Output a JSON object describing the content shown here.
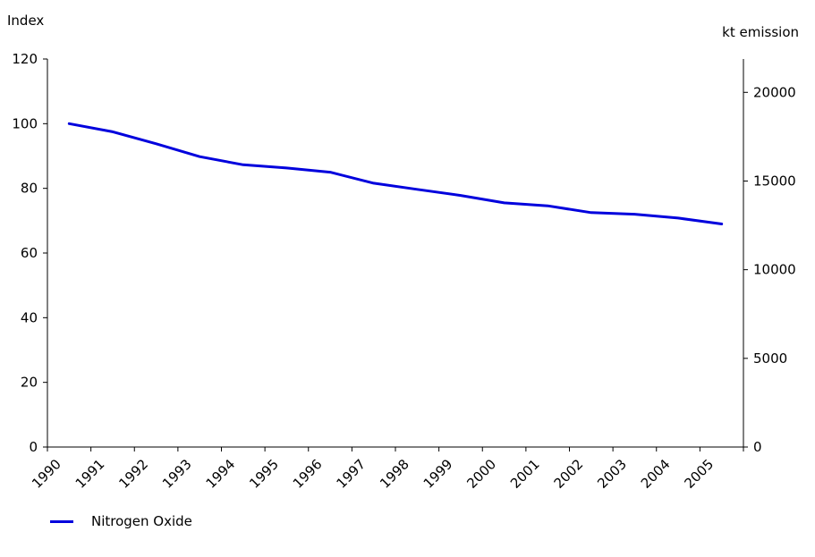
{
  "chart_data": {
    "type": "line",
    "categories": [
      "1990",
      "1991",
      "1992",
      "1993",
      "1994",
      "1995",
      "1996",
      "1997",
      "1998",
      "1999",
      "2000",
      "2001",
      "2002",
      "2003",
      "2004",
      "2005"
    ],
    "series": [
      {
        "name": "Nitrogen Oxide",
        "color": "#0000dd",
        "values": [
          100,
          97.5,
          93.8,
          89.8,
          87.3,
          86.3,
          85,
          81.6,
          79.7,
          77.8,
          75.5,
          74.6,
          72.5,
          72,
          70.8,
          69
        ]
      }
    ],
    "ylabel_left": "Index",
    "ylabel_right": "kt emission",
    "ylim_left": [
      0,
      120
    ],
    "ylim_right": [
      0,
      21880
    ],
    "left_ticks": [
      "0",
      "20",
      "40",
      "60",
      "80",
      "100",
      "120"
    ],
    "right_ticks": [
      "0",
      "5000",
      "10000",
      "15000",
      "20000"
    ],
    "grid": false,
    "legend": "bottom-left"
  }
}
